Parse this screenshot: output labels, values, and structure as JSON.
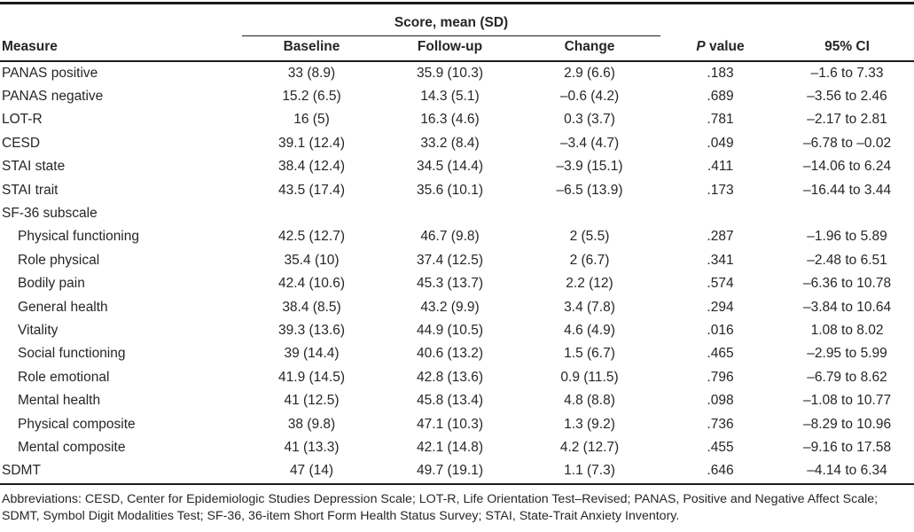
{
  "table": {
    "spanner_label": "Score, mean (SD)",
    "headers": {
      "measure": "Measure",
      "baseline": "Baseline",
      "followup": "Follow-up",
      "change": "Change",
      "p_italic": "P",
      "p_rest": " value",
      "ci": "95% CI"
    },
    "rows": [
      {
        "measure": "PANAS positive",
        "indent": false,
        "baseline": "33 (8.9)",
        "followup": "35.9 (10.3)",
        "change": "2.9 (6.6)",
        "p": ".183",
        "ci": "–1.6 to 7.33"
      },
      {
        "measure": "PANAS negative",
        "indent": false,
        "baseline": "15.2 (6.5)",
        "followup": "14.3 (5.1)",
        "change": "–0.6 (4.2)",
        "p": ".689",
        "ci": "–3.56 to 2.46"
      },
      {
        "measure": "LOT-R",
        "indent": false,
        "baseline": "16 (5)",
        "followup": "16.3 (4.6)",
        "change": "0.3 (3.7)",
        "p": ".781",
        "ci": "–2.17 to 2.81"
      },
      {
        "measure": "CESD",
        "indent": false,
        "baseline": "39.1 (12.4)",
        "followup": "33.2 (8.4)",
        "change": "–3.4 (4.7)",
        "p": ".049",
        "ci": "–6.78 to –0.02"
      },
      {
        "measure": "STAI state",
        "indent": false,
        "baseline": "38.4 (12.4)",
        "followup": "34.5 (14.4)",
        "change": "–3.9 (15.1)",
        "p": ".411",
        "ci": "–14.06 to 6.24"
      },
      {
        "measure": "STAI trait",
        "indent": false,
        "baseline": "43.5 (17.4)",
        "followup": "35.6 (10.1)",
        "change": "–6.5 (13.9)",
        "p": ".173",
        "ci": "–16.44 to 3.44"
      },
      {
        "measure": "SF-36 subscale",
        "indent": false,
        "baseline": "",
        "followup": "",
        "change": "",
        "p": "",
        "ci": ""
      },
      {
        "measure": "Physical functioning",
        "indent": true,
        "baseline": "42.5 (12.7)",
        "followup": "46.7 (9.8)",
        "change": "2 (5.5)",
        "p": ".287",
        "ci": "–1.96 to 5.89"
      },
      {
        "measure": "Role physical",
        "indent": true,
        "baseline": "35.4 (10)",
        "followup": "37.4 (12.5)",
        "change": "2 (6.7)",
        "p": ".341",
        "ci": "–2.48 to 6.51"
      },
      {
        "measure": "Bodily pain",
        "indent": true,
        "baseline": "42.4 (10.6)",
        "followup": "45.3 (13.7)",
        "change": "2.2 (12)",
        "p": ".574",
        "ci": "–6.36 to 10.78"
      },
      {
        "measure": "General health",
        "indent": true,
        "baseline": "38.4 (8.5)",
        "followup": "43.2 (9.9)",
        "change": "3.4 (7.8)",
        "p": ".294",
        "ci": "–3.84 to 10.64"
      },
      {
        "measure": "Vitality",
        "indent": true,
        "baseline": "39.3 (13.6)",
        "followup": "44.9 (10.5)",
        "change": "4.6 (4.9)",
        "p": ".016",
        "ci": "1.08 to 8.02"
      },
      {
        "measure": "Social functioning",
        "indent": true,
        "baseline": "39 (14.4)",
        "followup": "40.6 (13.2)",
        "change": "1.5 (6.7)",
        "p": ".465",
        "ci": "–2.95 to 5.99"
      },
      {
        "measure": "Role emotional",
        "indent": true,
        "baseline": "41.9 (14.5)",
        "followup": "42.8 (13.6)",
        "change": "0.9 (11.5)",
        "p": ".796",
        "ci": "–6.79 to 8.62"
      },
      {
        "measure": "Mental health",
        "indent": true,
        "baseline": "41 (12.5)",
        "followup": "45.8 (13.4)",
        "change": "4.8 (8.8)",
        "p": ".098",
        "ci": "–1.08 to 10.77"
      },
      {
        "measure": "Physical composite",
        "indent": true,
        "baseline": "38 (9.8)",
        "followup": "47.1 (10.3)",
        "change": "1.3 (9.2)",
        "p": ".736",
        "ci": "–8.29 to 10.96"
      },
      {
        "measure": "Mental composite",
        "indent": true,
        "baseline": "41 (13.3)",
        "followup": "42.1 (14.8)",
        "change": "4.2 (12.7)",
        "p": ".455",
        "ci": "–9.16 to 17.58"
      },
      {
        "measure": "SDMT",
        "indent": false,
        "baseline": "47 (14)",
        "followup": "49.7 (19.1)",
        "change": "1.1 (7.3)",
        "p": ".646",
        "ci": "–4.14 to 6.34"
      }
    ],
    "footnote": "Abbreviations: CESD, Center for Epidemiologic Studies Depression Scale; LOT-R, Life Orientation Test–Revised; PANAS, Positive and Negative Affect Scale; SDMT, Symbol Digit Modalities Test; SF-36, 36-item Short Form Health Status Survey; STAI, State-Trait Anxiety Inventory."
  },
  "colors": {
    "text": "#262626",
    "rule": "#1c1c1c",
    "background": "#ffffff"
  }
}
